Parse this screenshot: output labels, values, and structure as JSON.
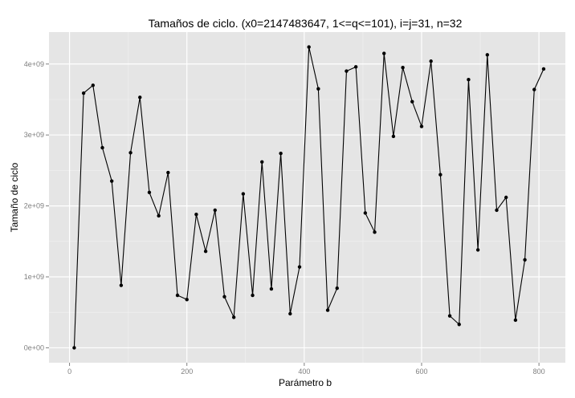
{
  "chart_data": {
    "type": "line",
    "title": "Tamaños de ciclo. (x0=2147483647, 1<=q<=101), i=j=31, n=32",
    "xlabel": "Parámetro b",
    "ylabel": "Tamaño de ciclo",
    "xlim": [
      -35,
      845
    ],
    "ylim": [
      -210000000,
      4450000000
    ],
    "x_ticks": [
      0,
      200,
      400,
      600,
      800
    ],
    "x_tick_labels": [
      "0",
      "200",
      "400",
      "600",
      "800"
    ],
    "y_ticks": [
      0,
      1000000000,
      2000000000,
      3000000000,
      4000000000
    ],
    "y_tick_labels": [
      "0e+00",
      "1e+09",
      "2e+09",
      "3e+09",
      "4e+09"
    ],
    "grid": true,
    "x": [
      8,
      24,
      40,
      56,
      72,
      88,
      104,
      120,
      136,
      152,
      168,
      184,
      200,
      216,
      232,
      248,
      264,
      280,
      296,
      312,
      328,
      344,
      360,
      376,
      392,
      408,
      424,
      440,
      456,
      472,
      488,
      504,
      520,
      536,
      552,
      568,
      584,
      600,
      616,
      632,
      648,
      664,
      680,
      696,
      712,
      728,
      744,
      760,
      776,
      792,
      808
    ],
    "values": [
      0,
      3590000000,
      3700000000,
      2820000000,
      2350000000,
      880000000,
      2750000000,
      3530000000,
      2190000000,
      1860000000,
      2470000000,
      740000000,
      680000000,
      1880000000,
      1360000000,
      1940000000,
      720000000,
      430000000,
      2170000000,
      740000000,
      2620000000,
      830000000,
      2740000000,
      480000000,
      1140000000,
      4240000000,
      3650000000,
      530000000,
      840000000,
      3900000000,
      3960000000,
      1900000000,
      1630000000,
      4150000000,
      2980000000,
      3950000000,
      3470000000,
      3120000000,
      4040000000,
      2440000000,
      450000000,
      330000000,
      3780000000,
      1380000000,
      4130000000,
      1940000000,
      2120000000,
      390000000,
      1240000000,
      3640000000,
      3930000000
    ]
  }
}
